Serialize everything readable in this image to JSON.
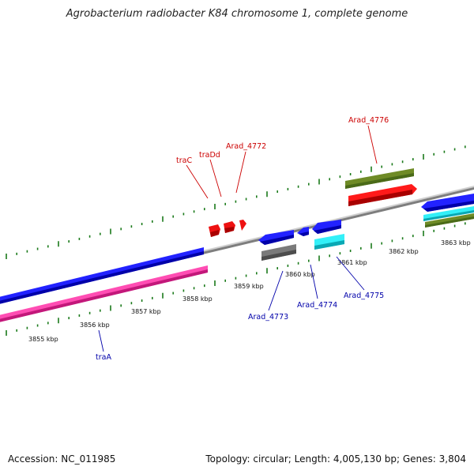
{
  "title": "Agrobacterium radiobacter K84 chromosome 1, complete genome",
  "footer": {
    "accession": "Accession: NC_011985",
    "topology": "Topology: circular; Length: 4,005,130 bp; Genes: 3,804"
  },
  "colors": {
    "backbone": "#8c8c8c",
    "forward_label": "#cc0000",
    "reverse_label": "#0000aa",
    "blue": "#1010e0",
    "magenta": "#ff2ca0",
    "red": "#ee1111",
    "olive": "#6f8b26",
    "gray": "#666666",
    "cyan": "#10e8f0",
    "tick_green": "#1a7a1a"
  },
  "scale_ticks": [
    {
      "label": "3855 kbp",
      "kbp": 3855
    },
    {
      "label": "3856 kbp",
      "kbp": 3856
    },
    {
      "label": "3857 kbp",
      "kbp": 3857
    },
    {
      "label": "3858 kbp",
      "kbp": 3858
    },
    {
      "label": "3859 kbp",
      "kbp": 3859
    },
    {
      "label": "3860 kbp",
      "kbp": 3860
    },
    {
      "label": "3861 kbp",
      "kbp": 3861
    },
    {
      "label": "3862 kbp",
      "kbp": 3862
    },
    {
      "label": "3863 kbp",
      "kbp": 3863
    }
  ],
  "gene_labels": [
    {
      "name": "traA",
      "strand": "reverse"
    },
    {
      "name": "traC",
      "strand": "forward"
    },
    {
      "name": "traDd",
      "strand": "forward"
    },
    {
      "name": "Arad_4772",
      "strand": "forward"
    },
    {
      "name": "Arad_4776",
      "strand": "forward"
    },
    {
      "name": "Arad_4773",
      "strand": "reverse"
    },
    {
      "name": "Arad_4774",
      "strand": "reverse"
    },
    {
      "name": "Arad_4775",
      "strand": "reverse"
    }
  ]
}
